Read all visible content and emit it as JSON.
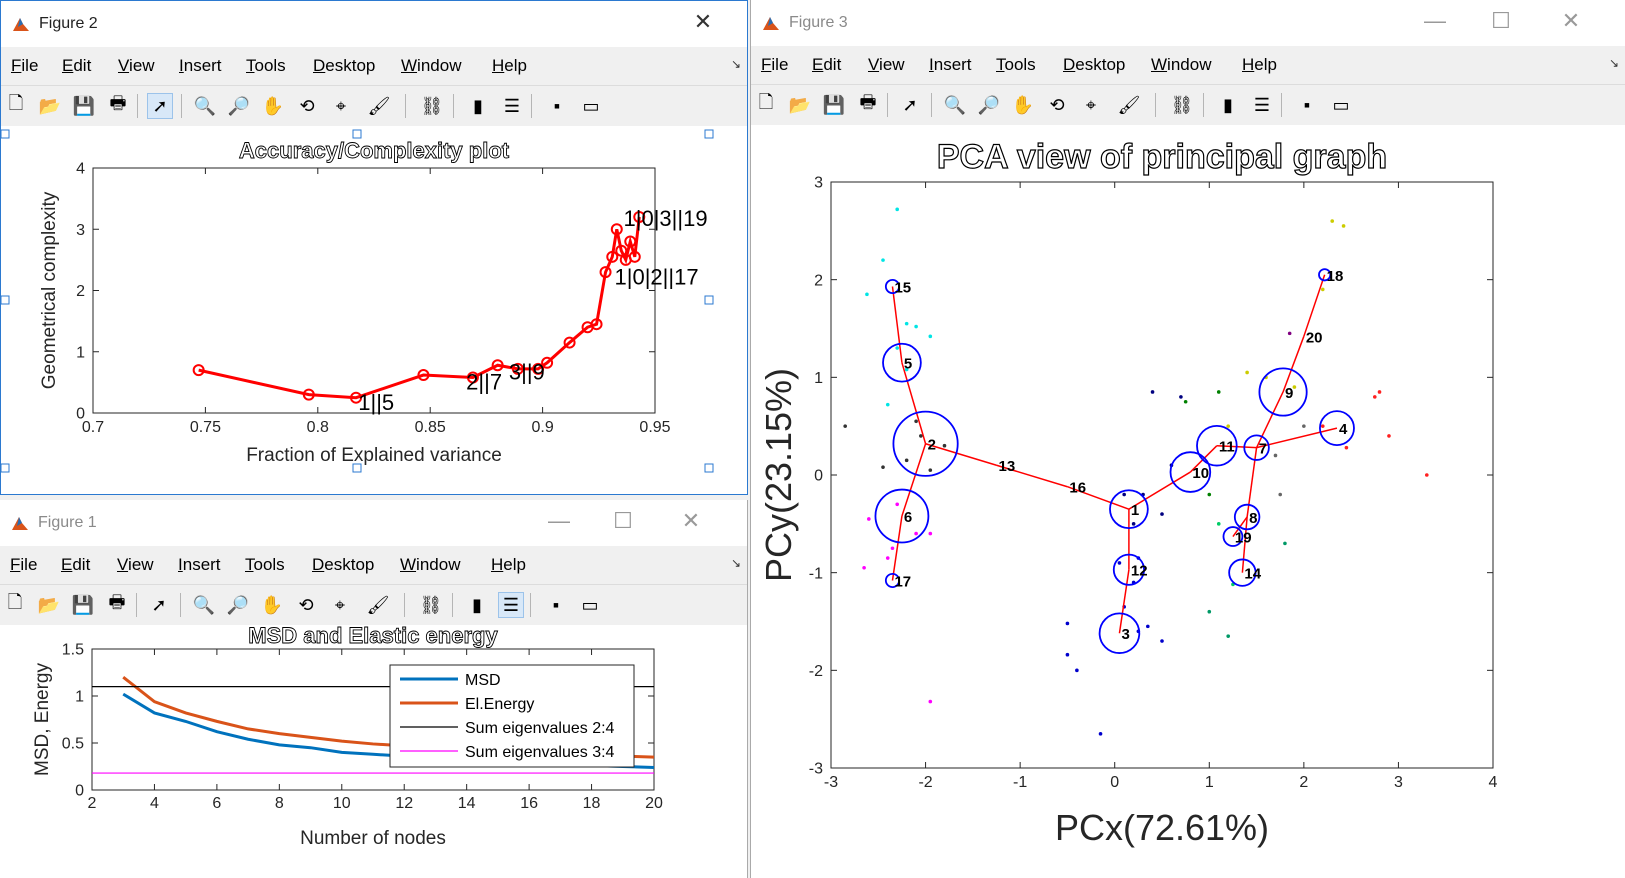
{
  "windows": {
    "figure2": {
      "title": "Figure 2"
    },
    "figure1": {
      "title": "Figure 1"
    },
    "figure3": {
      "title": "Figure 3"
    }
  },
  "menu": [
    "File",
    "Edit",
    "View",
    "Insert",
    "Tools",
    "Desktop",
    "Window",
    "Help"
  ],
  "icons": [
    "new-figure-icon",
    "open-icon",
    "save-icon",
    "print-icon",
    "select-arrow-icon",
    "zoom-in-icon",
    "zoom-out-icon",
    "pan-hand-icon",
    "rotate-3d-icon",
    "data-cursor-icon",
    "brush-icon",
    "link-plot-icon",
    "colorbar-icon",
    "legend-icon",
    "hide-plot-tools-icon",
    "show-plot-tools-icon"
  ],
  "chart_data": [
    {
      "id": "accuracy",
      "type": "line",
      "title": "Accuracy/Complexity plot",
      "xlabel": "Fraction of Explained variance",
      "ylabel": "Geometrical complexity",
      "xlim": [
        0.7,
        0.95
      ],
      "ylim": [
        0,
        4
      ],
      "xticks": [
        "0.7",
        "0.75",
        "0.8",
        "0.85",
        "0.9",
        "0.95"
      ],
      "yticks": [
        "0",
        "1",
        "2",
        "3",
        "4"
      ],
      "color": "#ff0000",
      "x": [
        0.747,
        0.796,
        0.817,
        0.847,
        0.869,
        0.88,
        0.889,
        0.898,
        0.902,
        0.912,
        0.92,
        0.924,
        0.928,
        0.931,
        0.933,
        0.935,
        0.937,
        0.939,
        0.941,
        0.943
      ],
      "y": [
        0.7,
        0.3,
        0.25,
        0.62,
        0.58,
        0.78,
        0.72,
        0.72,
        0.82,
        1.15,
        1.4,
        1.45,
        2.3,
        2.55,
        3.0,
        2.65,
        2.5,
        2.8,
        2.55,
        3.2
      ],
      "annotations": [
        {
          "text": "1||5",
          "x": 0.818,
          "y": 0.05
        },
        {
          "text": "2||7",
          "x": 0.866,
          "y": 0.38
        },
        {
          "text": "3||9",
          "x": 0.885,
          "y": 0.55
        },
        {
          "text": "1|0|2||17",
          "x": 0.932,
          "y": 2.1
        },
        {
          "text": "1|0|3||19",
          "x": 0.936,
          "y": 3.05
        }
      ]
    },
    {
      "id": "msd",
      "type": "line",
      "title": "MSD and Elastic energy",
      "xlabel": "Number of nodes",
      "ylabel": "MSD, Energy",
      "xlim": [
        2,
        20
      ],
      "ylim": [
        0,
        1.5
      ],
      "xticks": [
        "2",
        "4",
        "6",
        "8",
        "10",
        "12",
        "14",
        "16",
        "18",
        "20"
      ],
      "yticks": [
        "0",
        "0.5",
        "1",
        "1.5"
      ],
      "x": [
        3,
        4,
        5,
        6,
        7,
        8,
        9,
        10,
        11,
        12,
        13,
        14,
        15,
        16,
        17,
        18,
        19,
        20
      ],
      "series": [
        {
          "name": "MSD",
          "color": "#0072bd",
          "values": [
            1.02,
            0.82,
            0.73,
            0.62,
            0.54,
            0.48,
            0.45,
            0.4,
            0.38,
            0.36,
            0.34,
            0.32,
            0.3,
            0.29,
            0.27,
            0.26,
            0.25,
            0.24
          ]
        },
        {
          "name": "El.Energy",
          "color": "#d95319",
          "values": [
            1.2,
            0.94,
            0.82,
            0.73,
            0.65,
            0.6,
            0.56,
            0.52,
            0.49,
            0.47,
            0.45,
            0.42,
            0.41,
            0.39,
            0.38,
            0.37,
            0.36,
            0.35
          ]
        },
        {
          "name": "Sum eigenvalues 2:4",
          "color": "#000000",
          "constant": 1.1
        },
        {
          "name": "Sum eigenvalues 3:4",
          "color": "#ff00ff",
          "constant": 0.18
        }
      ],
      "legend": "top-right"
    },
    {
      "id": "pca",
      "type": "scatter",
      "title": "PCA view of principal graph",
      "xlabel": "PCx(72.61%)",
      "ylabel": "PCy(23.15%)",
      "xlim": [
        -3,
        4
      ],
      "ylim": [
        -3,
        3
      ],
      "xticks": [
        "-3",
        "-2",
        "-1",
        "0",
        "1",
        "2",
        "3",
        "4"
      ],
      "yticks": [
        "-3",
        "-2",
        "-1",
        "0",
        "1",
        "2",
        "3"
      ],
      "nodes": [
        {
          "id": "1",
          "x": 0.15,
          "y": -0.35,
          "r": 0.2
        },
        {
          "id": "2",
          "x": -2.0,
          "y": 0.32,
          "r": 0.34
        },
        {
          "id": "3",
          "x": 0.05,
          "y": -1.62,
          "r": 0.21
        },
        {
          "id": "4",
          "x": 2.35,
          "y": 0.48,
          "r": 0.18
        },
        {
          "id": "5",
          "x": -2.25,
          "y": 1.15,
          "r": 0.2
        },
        {
          "id": "6",
          "x": -2.25,
          "y": -0.42,
          "r": 0.28
        },
        {
          "id": "7",
          "x": 1.5,
          "y": 0.28,
          "r": 0.13
        },
        {
          "id": "8",
          "x": 1.4,
          "y": -0.43,
          "r": 0.13
        },
        {
          "id": "9",
          "x": 1.78,
          "y": 0.85,
          "r": 0.25
        },
        {
          "id": "10",
          "x": 0.8,
          "y": 0.03,
          "r": 0.21
        },
        {
          "id": "11",
          "x": 1.08,
          "y": 0.3,
          "r": 0.21
        },
        {
          "id": "12",
          "x": 0.15,
          "y": -0.97,
          "r": 0.16
        },
        {
          "id": "13",
          "x": -1.25,
          "y": 0.1,
          "r": 0.0
        },
        {
          "id": "14",
          "x": 1.35,
          "y": -1.0,
          "r": 0.14
        },
        {
          "id": "15",
          "x": -2.35,
          "y": 1.93,
          "r": 0.07
        },
        {
          "id": "16",
          "x": -0.5,
          "y": -0.12,
          "r": 0.0
        },
        {
          "id": "17",
          "x": -2.35,
          "y": -1.08,
          "r": 0.07
        },
        {
          "id": "18",
          "x": 2.22,
          "y": 2.05,
          "r": 0.06
        },
        {
          "id": "19",
          "x": 1.25,
          "y": -0.63,
          "r": 0.1
        },
        {
          "id": "20",
          "x": 2.0,
          "y": 1.42,
          "r": 0.0
        }
      ],
      "edges": [
        [
          "15",
          "5"
        ],
        [
          "5",
          "2"
        ],
        [
          "2",
          "6"
        ],
        [
          "6",
          "17"
        ],
        [
          "2",
          "13"
        ],
        [
          "13",
          "16"
        ],
        [
          "16",
          "1"
        ],
        [
          "1",
          "12"
        ],
        [
          "12",
          "3"
        ],
        [
          "1",
          "10"
        ],
        [
          "10",
          "11"
        ],
        [
          "11",
          "7"
        ],
        [
          "7",
          "4"
        ],
        [
          "7",
          "9"
        ],
        [
          "9",
          "20"
        ],
        [
          "20",
          "18"
        ],
        [
          "7",
          "8"
        ],
        [
          "8",
          "14"
        ],
        [
          "8",
          "19"
        ]
      ],
      "node_color": "#0000ff",
      "edge_color": "#ff0000",
      "points": [
        {
          "x": -2.3,
          "y": 2.72,
          "c": "#00e5e5"
        },
        {
          "x": -2.45,
          "y": 2.2,
          "c": "#00e5e5"
        },
        {
          "x": -2.62,
          "y": 1.85,
          "c": "#00e5e5"
        },
        {
          "x": -2.2,
          "y": 1.55,
          "c": "#00e5e5"
        },
        {
          "x": -2.1,
          "y": 1.52,
          "c": "#00e5e5"
        },
        {
          "x": -1.95,
          "y": 1.42,
          "c": "#00e5e5"
        },
        {
          "x": -2.3,
          "y": 1.3,
          "c": "#00e5e5"
        },
        {
          "x": -2.2,
          "y": 1.08,
          "c": "#00e5e5"
        },
        {
          "x": -2.4,
          "y": 0.72,
          "c": "#00e5e5"
        },
        {
          "x": -2.85,
          "y": 0.5,
          "c": "#333333"
        },
        {
          "x": -2.45,
          "y": 0.08,
          "c": "#333333"
        },
        {
          "x": -2.2,
          "y": 0.15,
          "c": "#333333"
        },
        {
          "x": -2.1,
          "y": 0.55,
          "c": "#333333"
        },
        {
          "x": -1.95,
          "y": 0.05,
          "c": "#333333"
        },
        {
          "x": -1.8,
          "y": 0.3,
          "c": "#333333"
        },
        {
          "x": -2.05,
          "y": 0.4,
          "c": "#333333"
        },
        {
          "x": -2.6,
          "y": -0.45,
          "c": "#ff00ff"
        },
        {
          "x": -2.3,
          "y": -0.3,
          "c": "#ff00ff"
        },
        {
          "x": -2.1,
          "y": -0.6,
          "c": "#ff00ff"
        },
        {
          "x": -2.35,
          "y": -0.75,
          "c": "#ff00ff"
        },
        {
          "x": -2.4,
          "y": -0.85,
          "c": "#ff00ff"
        },
        {
          "x": -2.65,
          "y": -0.95,
          "c": "#ff00ff"
        },
        {
          "x": -1.95,
          "y": -0.6,
          "c": "#ff00ff"
        },
        {
          "x": -1.95,
          "y": -2.32,
          "c": "#ff00ff"
        },
        {
          "x": 0.4,
          "y": 0.85,
          "c": "#000080"
        },
        {
          "x": 0.7,
          "y": 0.8,
          "c": "#000080"
        },
        {
          "x": 0.1,
          "y": -0.2,
          "c": "#000080"
        },
        {
          "x": 0.3,
          "y": -0.2,
          "c": "#000080"
        },
        {
          "x": 0.5,
          "y": -0.4,
          "c": "#000080"
        },
        {
          "x": 0.2,
          "y": -0.5,
          "c": "#000080"
        },
        {
          "x": 0.6,
          "y": 0.1,
          "c": "#000080"
        },
        {
          "x": 0.05,
          "y": -0.9,
          "c": "#0000cc"
        },
        {
          "x": 0.25,
          "y": -0.85,
          "c": "#0000cc"
        },
        {
          "x": 0.2,
          "y": -1.1,
          "c": "#0000cc"
        },
        {
          "x": 0.1,
          "y": -1.35,
          "c": "#0000cc"
        },
        {
          "x": -0.5,
          "y": -1.52,
          "c": "#0000cc"
        },
        {
          "x": -0.5,
          "y": -1.84,
          "c": "#0000cc"
        },
        {
          "x": -0.4,
          "y": -2.0,
          "c": "#0000cc"
        },
        {
          "x": 0.35,
          "y": -1.55,
          "c": "#0000cc"
        },
        {
          "x": 0.5,
          "y": -1.7,
          "c": "#0000cc"
        },
        {
          "x": -0.15,
          "y": -2.65,
          "c": "#0000cc"
        },
        {
          "x": 0.25,
          "y": -1.6,
          "c": "#0000cc"
        },
        {
          "x": 0.75,
          "y": 0.75,
          "c": "#008000"
        },
        {
          "x": 1.1,
          "y": 0.85,
          "c": "#008000"
        },
        {
          "x": 1.0,
          "y": -0.2,
          "c": "#008000"
        },
        {
          "x": 1.1,
          "y": -0.5,
          "c": "#00cc66"
        },
        {
          "x": 1.0,
          "y": -1.4,
          "c": "#009966"
        },
        {
          "x": 1.2,
          "y": -1.65,
          "c": "#009966"
        },
        {
          "x": 1.8,
          "y": -0.7,
          "c": "#009966"
        },
        {
          "x": 1.25,
          "y": -1.12,
          "c": "#00cc66"
        },
        {
          "x": 1.4,
          "y": 1.05,
          "c": "#cccc00"
        },
        {
          "x": 1.6,
          "y": 1.0,
          "c": "#cccc00"
        },
        {
          "x": 2.3,
          "y": 2.6,
          "c": "#cccc00"
        },
        {
          "x": 2.42,
          "y": 2.55,
          "c": "#cccc00"
        },
        {
          "x": 2.2,
          "y": 1.9,
          "c": "#cccc00"
        },
        {
          "x": 1.9,
          "y": 0.9,
          "c": "#cccc00"
        },
        {
          "x": 1.2,
          "y": 0.5,
          "c": "#cccc00"
        },
        {
          "x": 1.85,
          "y": 1.45,
          "c": "#800080"
        },
        {
          "x": 2.0,
          "y": 0.5,
          "c": "#666666"
        },
        {
          "x": 1.7,
          "y": 0.2,
          "c": "#666666"
        },
        {
          "x": 1.75,
          "y": -0.2,
          "c": "#666666"
        },
        {
          "x": 2.75,
          "y": 0.8,
          "c": "#ff2020"
        },
        {
          "x": 2.8,
          "y": 0.85,
          "c": "#ff2020"
        },
        {
          "x": 2.9,
          "y": 0.4,
          "c": "#ff2020"
        },
        {
          "x": 3.3,
          "y": 0.0,
          "c": "#ff2020"
        },
        {
          "x": 2.45,
          "y": 0.28,
          "c": "#ff2020"
        },
        {
          "x": 2.2,
          "y": 0.5,
          "c": "#ff2020"
        }
      ]
    }
  ]
}
